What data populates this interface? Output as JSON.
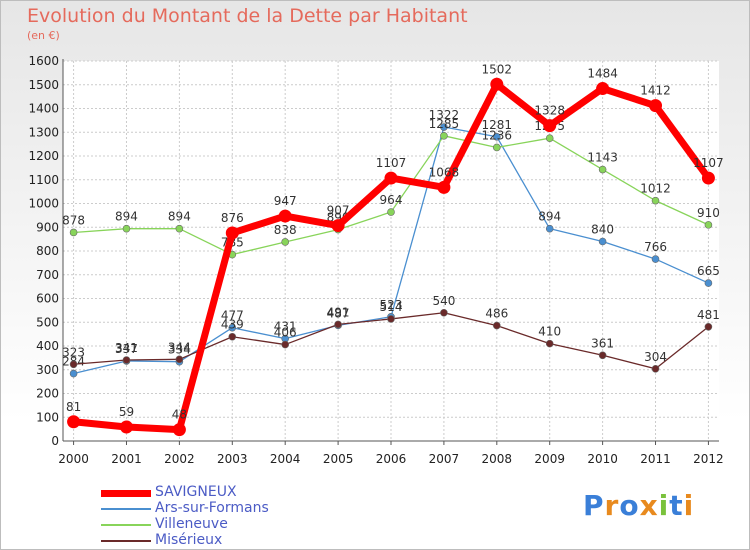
{
  "header": {
    "title": "Evolution du Montant de la Dette par Habitant",
    "subtitle": "(en €)"
  },
  "logo": {
    "text": "Proxiti"
  },
  "chart_data": {
    "type": "line",
    "title": "Evolution du Montant de la Dette par Habitant",
    "subtitle": "(en €)",
    "xlabel": "",
    "ylabel": "",
    "x": [
      2000,
      2001,
      2002,
      2003,
      2004,
      2005,
      2006,
      2007,
      2008,
      2009,
      2010,
      2011,
      2012
    ],
    "ylim": [
      0,
      1600
    ],
    "yticks": [
      0,
      100,
      200,
      300,
      400,
      500,
      600,
      700,
      800,
      900,
      1000,
      1100,
      1200,
      1300,
      1400,
      1500,
      1600
    ],
    "grid": true,
    "legend_position": "bottom-left",
    "series": [
      {
        "name": "Ars-sur-Formans",
        "color": "#4a8fd0",
        "values": [
          284,
          337,
          334,
          477,
          431,
          487,
          523,
          1322,
          1281,
          894,
          840,
          766,
          665
        ]
      },
      {
        "name": "Villeneuve",
        "color": "#88d45a",
        "values": [
          878,
          894,
          894,
          785,
          838,
          890,
          964,
          1285,
          1236,
          1275,
          1143,
          1012,
          910
        ]
      },
      {
        "name": "Misérieux",
        "color": "#6a2a2a",
        "values": [
          323,
          341,
          344,
          439,
          406,
          491,
          514,
          540,
          486,
          410,
          361,
          304,
          481
        ]
      },
      {
        "name": "SAVIGNEUX",
        "color": "#ff0000",
        "values": [
          81,
          59,
          48,
          876,
          947,
          907,
          1107,
          1068,
          1502,
          1328,
          1484,
          1412,
          1107
        ]
      }
    ],
    "legend_order": [
      "SAVIGNEUX",
      "Ars-sur-Formans",
      "Villeneuve",
      "Misérieux"
    ]
  }
}
